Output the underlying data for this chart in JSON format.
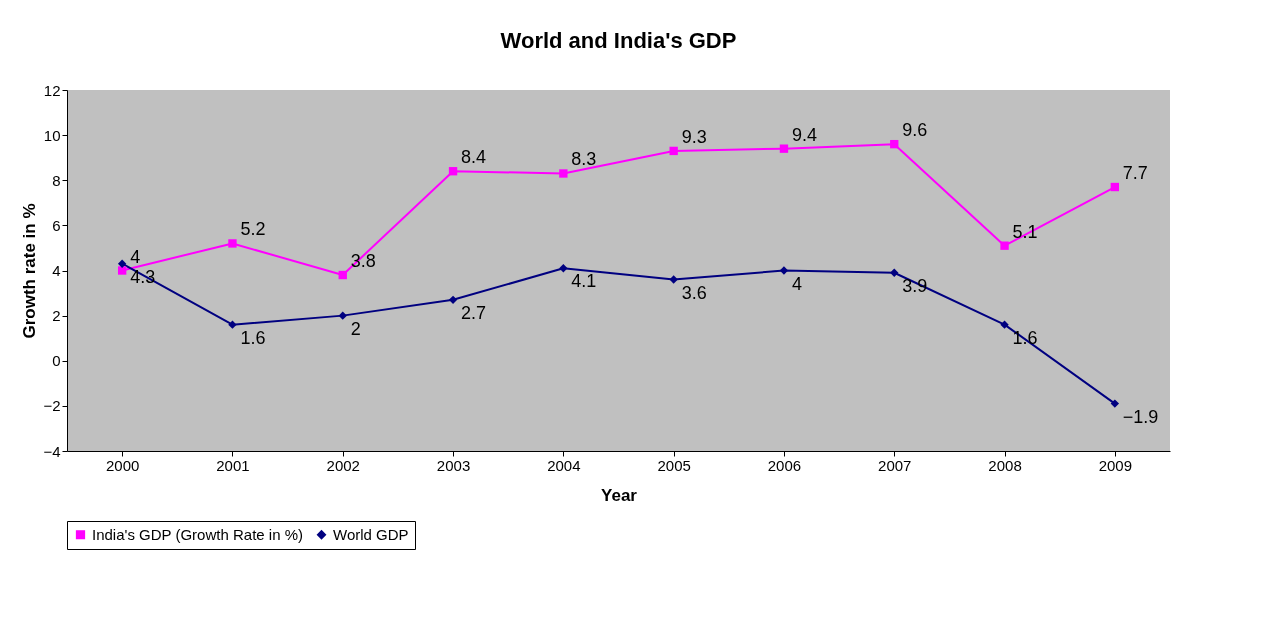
{
  "chart_data": {
    "type": "line",
    "title": "World and India's GDP",
    "xlabel": "Year",
    "ylabel": "Growth rate in %",
    "categories": [
      "2000",
      "2001",
      "2002",
      "2003",
      "2004",
      "2005",
      "2006",
      "2007",
      "2008",
      "2009"
    ],
    "series": [
      {
        "name": "India's GDP (Growth Rate in %)",
        "color": "#ff00ff",
        "marker": "square",
        "values": [
          4,
          5.2,
          3.8,
          8.4,
          8.3,
          9.3,
          9.4,
          9.6,
          5.1,
          7.7
        ]
      },
      {
        "name": "World GDP",
        "color": "#000080",
        "marker": "diamond",
        "values": [
          4.3,
          1.6,
          2,
          2.7,
          4.1,
          3.6,
          4,
          3.9,
          1.6,
          -1.9
        ]
      }
    ],
    "ylim": [
      -4,
      12
    ],
    "yticks": [
      -4,
      -2,
      0,
      2,
      4,
      6,
      8,
      10,
      12
    ],
    "grid": false,
    "legend": "bottom",
    "data_labels": true,
    "line_style": "solid"
  }
}
